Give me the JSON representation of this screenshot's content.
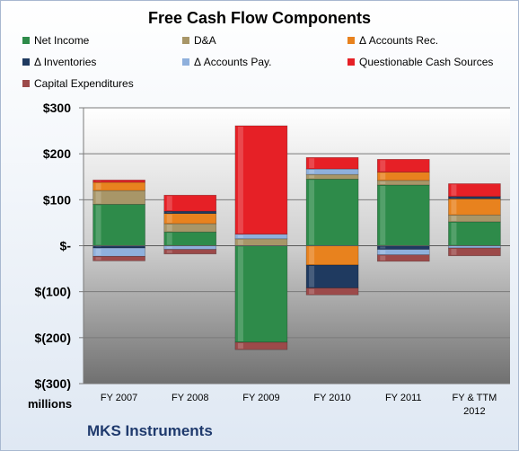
{
  "chart_data": {
    "type": "bar",
    "stacked": true,
    "title": "Free Cash Flow Components",
    "subtitle": "MKS Instruments",
    "ylabel": "millions",
    "xlabel": "",
    "ylim": [
      -300,
      300
    ],
    "yticks": [
      300,
      200,
      100,
      0,
      -100,
      -200,
      -300
    ],
    "ytick_labels": [
      "$300",
      "$200",
      "$100",
      "$-",
      "$(100)",
      "$(200)",
      "$(300)"
    ],
    "grid": true,
    "legend_position": "top",
    "categories": [
      "FY 2007",
      "FY 2008",
      "FY 2009",
      "FY 2010",
      "FY 2011",
      "FY & TTM 2012"
    ],
    "series": [
      {
        "name": "Net Income",
        "color": "#2e8b4a",
        "values": [
          90,
          30,
          -210,
          145,
          132,
          52
        ]
      },
      {
        "name": "D&A",
        "color": "#a89668",
        "values": [
          30,
          18,
          15,
          10,
          10,
          15
        ]
      },
      {
        "name": "Δ Accounts Rec.",
        "color": "#e8821e",
        "values": [
          18,
          22,
          0,
          -42,
          18,
          35
        ]
      },
      {
        "name": "Δ Inventories",
        "color": "#1f3a60",
        "values": [
          -5,
          5,
          0,
          -50,
          -8,
          5
        ]
      },
      {
        "name": "Δ Accounts Pay.",
        "color": "#8fb0dc",
        "values": [
          -18,
          -8,
          10,
          12,
          -12,
          -5
        ]
      },
      {
        "name": "Questionable Cash Sources",
        "color": "#e62026",
        "values": [
          5,
          35,
          236,
          25,
          28,
          28
        ]
      },
      {
        "name": "Capital Expenditures",
        "color": "#9c4a4a",
        "values": [
          -10,
          -10,
          -16,
          -15,
          -14,
          -17
        ]
      }
    ]
  }
}
